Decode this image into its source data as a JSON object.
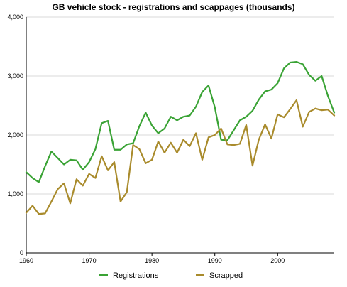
{
  "chart_data": {
    "type": "line",
    "title": "GB vehicle stock - registrations and scappages (thousands)",
    "xlabel": "",
    "ylabel": "",
    "xlim": [
      1960,
      2009
    ],
    "ylim": [
      0,
      4000
    ],
    "x_ticks": [
      "1960",
      "1970",
      "1980",
      "1990",
      "2000"
    ],
    "x_tick_values": [
      1960,
      1970,
      1980,
      1990,
      2000
    ],
    "y_ticks": [
      "0",
      "1,000",
      "2,000",
      "3,000",
      "4,000"
    ],
    "y_tick_values": [
      0,
      1000,
      2000,
      3000,
      4000
    ],
    "grid": true,
    "legend_position": "bottom",
    "x": [
      1960,
      1961,
      1962,
      1963,
      1964,
      1965,
      1966,
      1967,
      1968,
      1969,
      1970,
      1971,
      1972,
      1973,
      1974,
      1975,
      1976,
      1977,
      1978,
      1979,
      1980,
      1981,
      1982,
      1983,
      1984,
      1985,
      1986,
      1987,
      1988,
      1989,
      1990,
      1991,
      1992,
      1993,
      1994,
      1995,
      1996,
      1997,
      1998,
      1999,
      2000,
      2001,
      2002,
      2003,
      2004,
      2005,
      2006,
      2007,
      2008,
      2009
    ],
    "series": [
      {
        "name": "Registrations",
        "color": "#3aa335",
        "values": [
          1370,
          1270,
          1200,
          1470,
          1720,
          1610,
          1500,
          1580,
          1570,
          1410,
          1540,
          1760,
          2200,
          2240,
          1750,
          1750,
          1840,
          1860,
          2150,
          2380,
          2160,
          2030,
          2110,
          2310,
          2250,
          2310,
          2330,
          2480,
          2730,
          2840,
          2470,
          1920,
          1910,
          2080,
          2250,
          2310,
          2410,
          2600,
          2740,
          2770,
          2880,
          3130,
          3230,
          3240,
          3200,
          3020,
          2920,
          3000,
          2660,
          2380
        ]
      },
      {
        "name": "Scrapped",
        "color": "#a98b2c",
        "values": [
          680,
          800,
          660,
          670,
          870,
          1080,
          1180,
          840,
          1250,
          1140,
          1340,
          1270,
          1640,
          1400,
          1540,
          870,
          1030,
          1830,
          1760,
          1520,
          1580,
          1890,
          1700,
          1870,
          1700,
          1920,
          1810,
          2030,
          1580,
          1960,
          2000,
          2110,
          1840,
          1830,
          1850,
          2170,
          1480,
          1920,
          2180,
          1940,
          2350,
          2300,
          2440,
          2590,
          2140,
          2390,
          2450,
          2420,
          2430,
          2330
        ]
      }
    ]
  }
}
